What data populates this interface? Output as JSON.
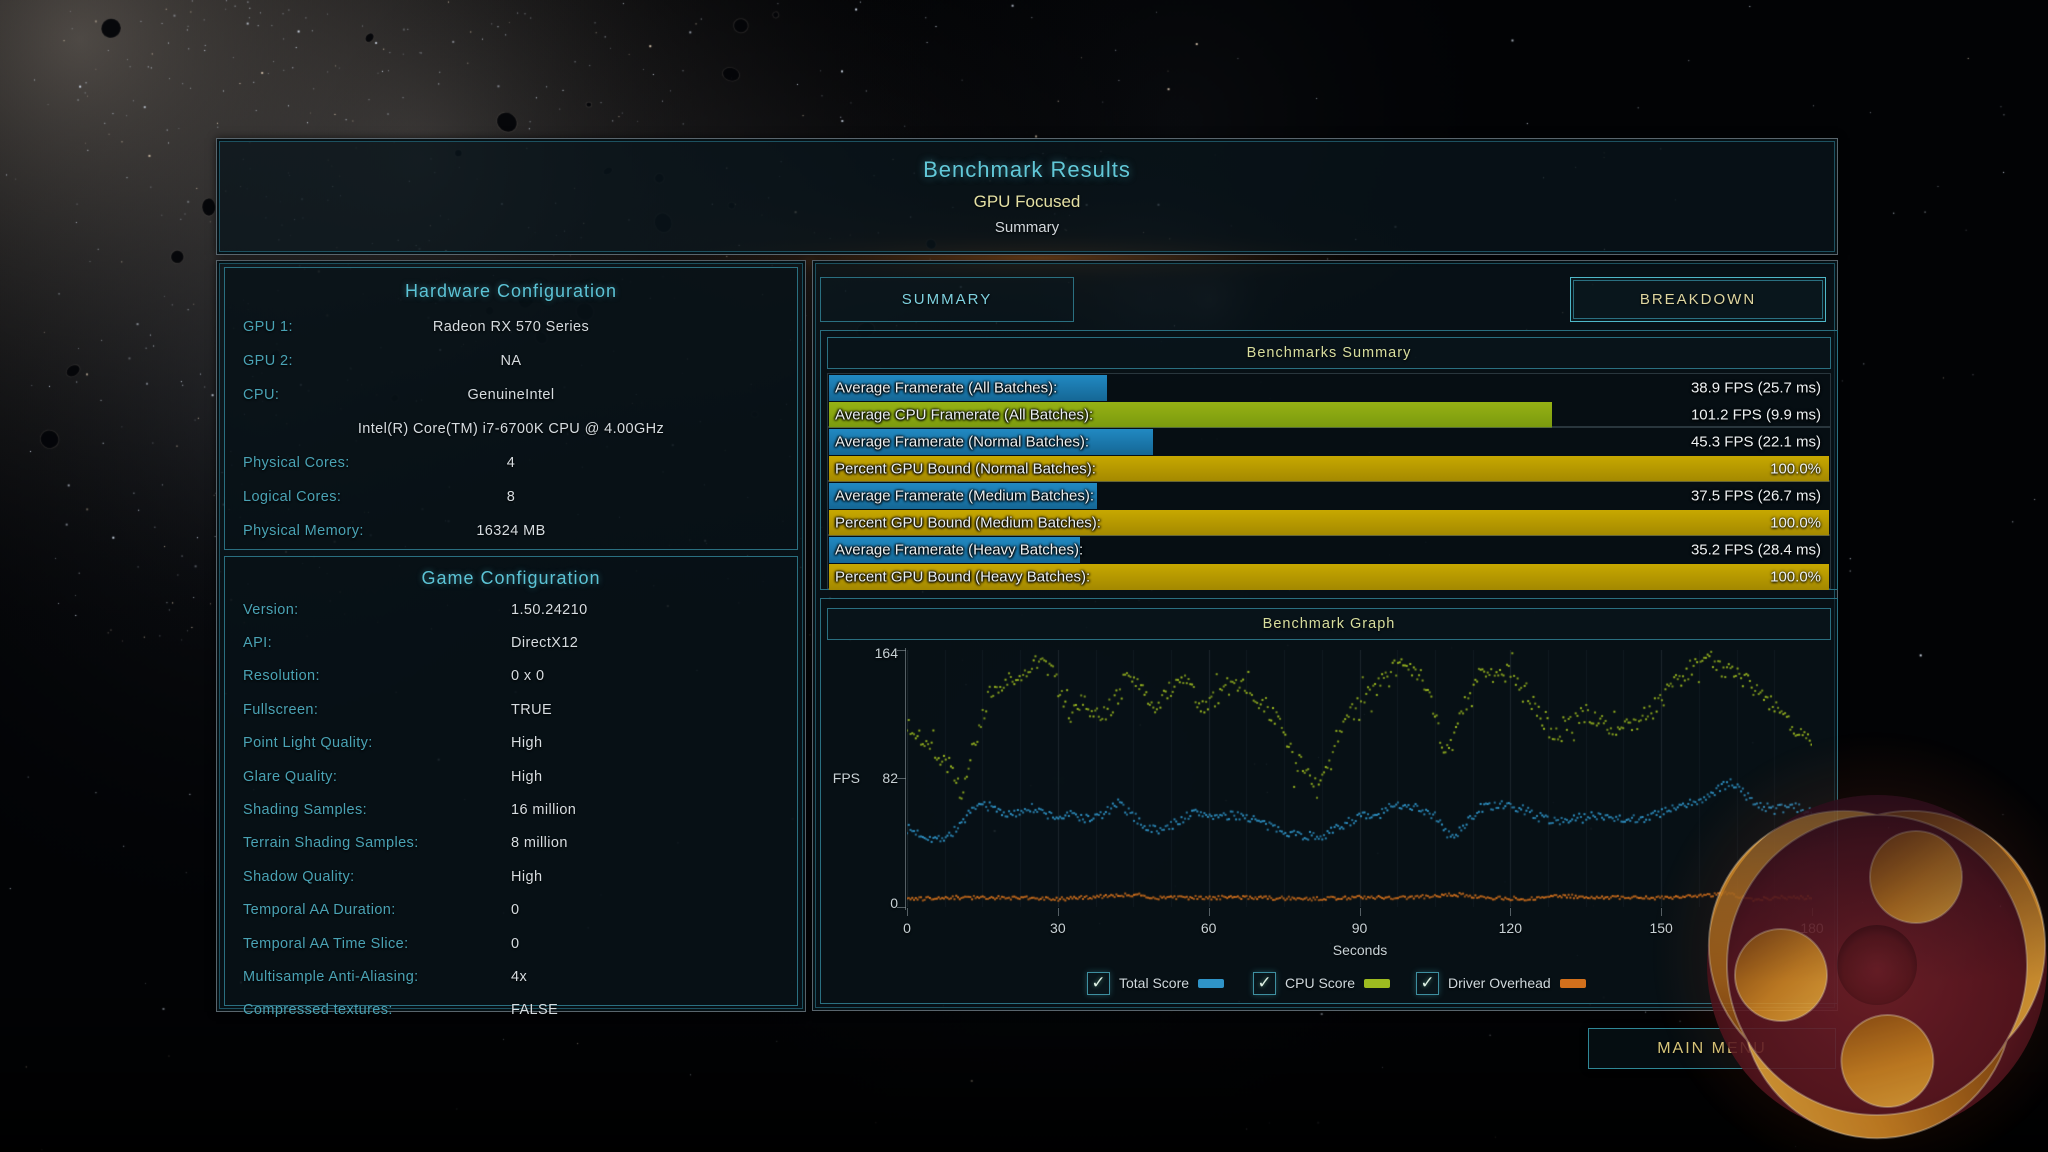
{
  "title": {
    "line1": "Benchmark Results",
    "line2": "GPU Focused",
    "line3": "Summary"
  },
  "hardware": {
    "header": "Hardware Configuration",
    "rows": [
      {
        "label": "GPU 1:",
        "value": "Radeon RX 570 Series"
      },
      {
        "label": "GPU 2:",
        "value": "NA"
      },
      {
        "label": "CPU:",
        "value": "GenuineIntel"
      },
      {
        "label": "",
        "value": "Intel(R) Core(TM) i7-6700K CPU @ 4.00GHz",
        "wide": true
      },
      {
        "label": "Physical Cores:",
        "value": "4"
      },
      {
        "label": "Logical Cores:",
        "value": "8"
      },
      {
        "label": "Physical Memory:",
        "value": "16324 MB"
      }
    ]
  },
  "game": {
    "header": "Game Configuration",
    "rows": [
      {
        "label": "Version:",
        "value": "1.50.24210"
      },
      {
        "label": "API:",
        "value": "DirectX12"
      },
      {
        "label": "Resolution:",
        "value": "0 x 0"
      },
      {
        "label": "Fullscreen:",
        "value": "TRUE"
      },
      {
        "label": "Point Light Quality:",
        "value": "High"
      },
      {
        "label": "Glare Quality:",
        "value": "High"
      },
      {
        "label": "Shading Samples:",
        "value": "16 million"
      },
      {
        "label": "Terrain Shading Samples:",
        "value": "8 million"
      },
      {
        "label": "Shadow Quality:",
        "value": "High"
      },
      {
        "label": "Temporal AA Duration:",
        "value": "0"
      },
      {
        "label": "Temporal AA Time Slice:",
        "value": "0"
      },
      {
        "label": "Multisample Anti-Aliasing:",
        "value": "4x"
      },
      {
        "label": "Compressed textures:",
        "value": "FALSE"
      }
    ]
  },
  "tabs": {
    "summary": "SUMMARY",
    "breakdown": "BREAKDOWN"
  },
  "summary_panel": {
    "header": "Benchmarks Summary",
    "bar_scale_max_fps": 140,
    "groups": [
      [
        {
          "label": "Average Framerate (All Batches):",
          "value": "38.9 FPS (25.7 ms)",
          "bar": "blue",
          "fps": 38.9
        },
        {
          "label": "Average CPU Framerate (All Batches):",
          "value": "101.2 FPS (9.9 ms)",
          "bar": "green",
          "fps": 101.2
        }
      ],
      [
        {
          "label": "Average Framerate (Normal Batches):",
          "value": "45.3 FPS (22.1 ms)",
          "bar": "blue",
          "fps": 45.3
        },
        {
          "label": "Percent GPU Bound (Normal Batches):",
          "value": "100.0%",
          "bar": "gold",
          "percent": 100.0
        }
      ],
      [
        {
          "label": "Average Framerate (Medium Batches):",
          "value": "37.5 FPS (26.7 ms)",
          "bar": "blue",
          "fps": 37.5
        },
        {
          "label": "Percent GPU Bound (Medium Batches):",
          "value": "100.0%",
          "bar": "gold",
          "percent": 100.0
        }
      ],
      [
        {
          "label": "Average Framerate (Heavy Batches):",
          "value": "35.2 FPS (28.4 ms)",
          "bar": "blue",
          "fps": 35.2
        },
        {
          "label": "Percent GPU Bound (Heavy Batches):",
          "value": "100.0%",
          "bar": "gold",
          "percent": 100.0
        }
      ]
    ]
  },
  "graph_panel": {
    "header": "Benchmark Graph"
  },
  "chart_data": {
    "type": "scatter",
    "title": "Benchmark Graph",
    "xlabel": "Seconds",
    "ylabel": "FPS",
    "xlim": [
      0,
      180
    ],
    "ylim": [
      0,
      164
    ],
    "xticks": [
      0,
      30,
      60,
      90,
      120,
      150,
      180
    ],
    "yticks": [
      164,
      82,
      0
    ],
    "minor_grid_step_s": 7.5,
    "grid": "vertical-faint",
    "legend_position": "bottom",
    "sample_step_s": 0.35,
    "series": [
      {
        "name": "Total Score",
        "color": "#2f94c8",
        "jitter": 3,
        "keyframes": [
          [
            0,
            50
          ],
          [
            3,
            46
          ],
          [
            6,
            43
          ],
          [
            9,
            47
          ],
          [
            12,
            58
          ],
          [
            15,
            66
          ],
          [
            18,
            62
          ],
          [
            21,
            58
          ],
          [
            24,
            64
          ],
          [
            27,
            60
          ],
          [
            30,
            57
          ],
          [
            33,
            59
          ],
          [
            36,
            56
          ],
          [
            39,
            59
          ],
          [
            42,
            66
          ],
          [
            45,
            58
          ],
          [
            48,
            50
          ],
          [
            51,
            49
          ],
          [
            54,
            55
          ],
          [
            57,
            60
          ],
          [
            60,
            59
          ],
          [
            63,
            57
          ],
          [
            66,
            59
          ],
          [
            69,
            56
          ],
          [
            72,
            51
          ],
          [
            75,
            49
          ],
          [
            78,
            46
          ],
          [
            81,
            45
          ],
          [
            84,
            47
          ],
          [
            87,
            53
          ],
          [
            90,
            58
          ],
          [
            93,
            57
          ],
          [
            96,
            63
          ],
          [
            99,
            66
          ],
          [
            102,
            63
          ],
          [
            105,
            58
          ],
          [
            107,
            48
          ],
          [
            109,
            44
          ],
          [
            111,
            53
          ],
          [
            114,
            63
          ],
          [
            117,
            65
          ],
          [
            120,
            64
          ],
          [
            123,
            62
          ],
          [
            126,
            57
          ],
          [
            129,
            55
          ],
          [
            132,
            56
          ],
          [
            135,
            57
          ],
          [
            138,
            59
          ],
          [
            141,
            57
          ],
          [
            144,
            56
          ],
          [
            147,
            57
          ],
          [
            150,
            60
          ],
          [
            153,
            63
          ],
          [
            156,
            66
          ],
          [
            159,
            70
          ],
          [
            162,
            76
          ],
          [
            164,
            80
          ],
          [
            166,
            74
          ],
          [
            168,
            68
          ],
          [
            170,
            64
          ],
          [
            173,
            62
          ],
          [
            176,
            64
          ],
          [
            180,
            60
          ]
        ]
      },
      {
        "name": "CPU Score",
        "color": "#9dbb20",
        "jitter": 6,
        "keyframes": [
          [
            0,
            118
          ],
          [
            3,
            108
          ],
          [
            6,
            96
          ],
          [
            9,
            88
          ],
          [
            11,
            74
          ],
          [
            13,
            100
          ],
          [
            16,
            132
          ],
          [
            20,
            146
          ],
          [
            24,
            152
          ],
          [
            27,
            158
          ],
          [
            29,
            148
          ],
          [
            32,
            126
          ],
          [
            35,
            131
          ],
          [
            38,
            120
          ],
          [
            41,
            128
          ],
          [
            44,
            149
          ],
          [
            46,
            140
          ],
          [
            49,
            126
          ],
          [
            52,
            138
          ],
          [
            55,
            149
          ],
          [
            58,
            128
          ],
          [
            61,
            133
          ],
          [
            64,
            141
          ],
          [
            67,
            144
          ],
          [
            70,
            132
          ],
          [
            73,
            122
          ],
          [
            76,
            100
          ],
          [
            79,
            84
          ],
          [
            82,
            82
          ],
          [
            85,
            104
          ],
          [
            88,
            122
          ],
          [
            91,
            132
          ],
          [
            94,
            146
          ],
          [
            97,
            152
          ],
          [
            100,
            154
          ],
          [
            103,
            142
          ],
          [
            105,
            122
          ],
          [
            107,
            100
          ],
          [
            109,
            108
          ],
          [
            111,
            130
          ],
          [
            114,
            150
          ],
          [
            117,
            152
          ],
          [
            120,
            148
          ],
          [
            123,
            138
          ],
          [
            126,
            122
          ],
          [
            129,
            112
          ],
          [
            132,
            116
          ],
          [
            135,
            124
          ],
          [
            138,
            120
          ],
          [
            141,
            114
          ],
          [
            144,
            118
          ],
          [
            147,
            121
          ],
          [
            150,
            132
          ],
          [
            153,
            144
          ],
          [
            156,
            152
          ],
          [
            159,
            159
          ],
          [
            162,
            154
          ],
          [
            165,
            148
          ],
          [
            168,
            142
          ],
          [
            171,
            134
          ],
          [
            174,
            120
          ],
          [
            177,
            114
          ],
          [
            180,
            108
          ]
        ]
      },
      {
        "name": "Driver Overhead",
        "color": "#d2701c",
        "jitter": 1.2,
        "keyframes": [
          [
            0,
            5
          ],
          [
            10,
            6
          ],
          [
            20,
            6
          ],
          [
            30,
            5
          ],
          [
            40,
            7
          ],
          [
            45,
            8
          ],
          [
            50,
            6
          ],
          [
            60,
            6
          ],
          [
            70,
            6
          ],
          [
            80,
            5
          ],
          [
            90,
            6
          ],
          [
            100,
            6
          ],
          [
            105,
            7
          ],
          [
            110,
            8
          ],
          [
            115,
            6
          ],
          [
            125,
            5
          ],
          [
            130,
            7
          ],
          [
            140,
            6
          ],
          [
            150,
            6
          ],
          [
            158,
            7
          ],
          [
            163,
            9
          ],
          [
            168,
            5
          ],
          [
            174,
            6
          ],
          [
            180,
            6
          ]
        ]
      }
    ]
  },
  "legend": [
    {
      "label": "Total Score",
      "color": "#2f94c8",
      "checked": true
    },
    {
      "label": "CPU Score",
      "color": "#9dbb20",
      "checked": true
    },
    {
      "label": "Driver Overhead",
      "color": "#d2701c",
      "checked": true
    }
  ],
  "main_menu_label": "MAIN MENU",
  "colors": {
    "accent_cyan": "#5cc3d6",
    "label_cyan": "#4aa3b5",
    "value_text": "#d7dde1",
    "yellow_text": "#d8de9e",
    "bar_blue": "#1d82ba",
    "bar_green": "#93ad10",
    "bar_gold": "#bd9e00",
    "dot_blue": "#2f94c8",
    "dot_green": "#9dbb20",
    "dot_orange": "#d2701c"
  }
}
